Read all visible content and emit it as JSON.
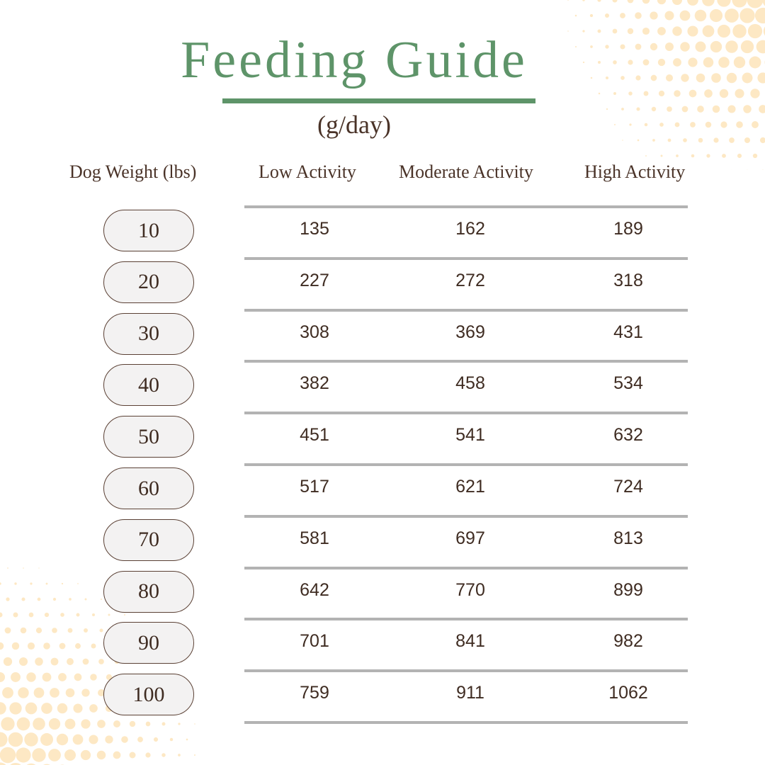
{
  "header": {
    "title": "Feeding Guide",
    "subtitle": "(g/day)"
  },
  "colors": {
    "accent_green": "#5e9469",
    "text_brown": "#4a3328",
    "rule_gray": "#b3b3b3",
    "pill_fill": "#f3f2f2",
    "halftone_peach": "#fde8c4"
  },
  "table": {
    "columns": [
      "Dog Weight (lbs)",
      "Low Activity",
      "Moderate Activity",
      "High Activity"
    ],
    "rows": [
      {
        "weight": "10",
        "low": "135",
        "moderate": "162",
        "high": "189"
      },
      {
        "weight": "20",
        "low": "227",
        "moderate": "272",
        "high": "318"
      },
      {
        "weight": "30",
        "low": "308",
        "moderate": "369",
        "high": "431"
      },
      {
        "weight": "40",
        "low": "382",
        "moderate": "458",
        "high": "534"
      },
      {
        "weight": "50",
        "low": "451",
        "moderate": "541",
        "high": "632"
      },
      {
        "weight": "60",
        "low": "517",
        "moderate": "621",
        "high": "724"
      },
      {
        "weight": "70",
        "low": "581",
        "moderate": "697",
        "high": "813"
      },
      {
        "weight": "80",
        "low": "642",
        "moderate": "770",
        "high": "899"
      },
      {
        "weight": "90",
        "low": "701",
        "moderate": "841",
        "high": "982"
      },
      {
        "weight": "100",
        "low": "759",
        "moderate": "911",
        "high": "1062"
      }
    ]
  },
  "decor": {
    "top_right": "halftone-dots",
    "bottom_left": "halftone-dots"
  }
}
